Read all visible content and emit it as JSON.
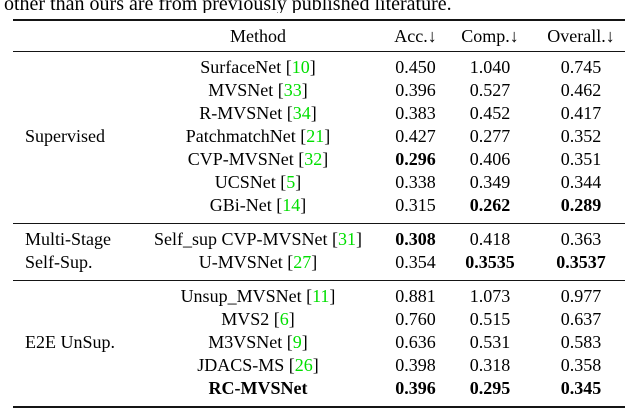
{
  "caption_fragment": "other than ours are from previously published literature.",
  "colors": {
    "citation_green": "#00DF00",
    "text": "#000000",
    "background": "#ffffff",
    "rule": "#151515"
  },
  "table": {
    "headers": {
      "group": "",
      "method": "Method",
      "acc": "Acc.↓",
      "comp": "Comp.↓",
      "overall": "Overall.↓"
    },
    "brackets": {
      "open": "[",
      "close": "]"
    },
    "groups": [
      {
        "rows": [
          {
            "label": "",
            "method": "SurfaceNet",
            "cite": "10",
            "acc": "0.450",
            "comp": "1.040",
            "overall": "0.745",
            "bold": []
          },
          {
            "label": "",
            "method": "MVSNet",
            "cite": "33",
            "acc": "0.396",
            "comp": "0.527",
            "overall": "0.462",
            "bold": []
          },
          {
            "label": "",
            "method": "R-MVSNet",
            "cite": "34",
            "acc": "0.383",
            "comp": "0.452",
            "overall": "0.417",
            "bold": []
          },
          {
            "label": "Supervised",
            "method": "PatchmatchNet",
            "cite": "21",
            "acc": "0.427",
            "comp": "0.277",
            "overall": "0.352",
            "bold": []
          },
          {
            "label": "",
            "method": "CVP-MVSNet",
            "cite": "32",
            "acc": "0.296",
            "comp": "0.406",
            "overall": "0.351",
            "bold": [
              "acc"
            ]
          },
          {
            "label": "",
            "method": "UCSNet",
            "cite": "5",
            "acc": "0.338",
            "comp": "0.349",
            "overall": "0.344",
            "bold": []
          },
          {
            "label": "",
            "method": "GBi-Net",
            "cite": "14",
            "acc": "0.315",
            "comp": "0.262",
            "overall": "0.289",
            "bold": [
              "comp",
              "overall"
            ]
          }
        ]
      },
      {
        "rows": [
          {
            "label": "Multi-Stage",
            "method": "Self_sup CVP-MVSNet",
            "cite": "31",
            "acc": "0.308",
            "comp": "0.418",
            "overall": "0.363",
            "bold": [
              "acc"
            ]
          },
          {
            "label": "Self-Sup.",
            "method": "U-MVSNet",
            "cite": "27",
            "acc": "0.354",
            "comp": "0.3535",
            "overall": "0.3537",
            "bold": [
              "comp",
              "overall"
            ]
          }
        ]
      },
      {
        "rows": [
          {
            "label": "",
            "method": "Unsup_MVSNet",
            "cite": "11",
            "acc": "0.881",
            "comp": "1.073",
            "overall": "0.977",
            "bold": []
          },
          {
            "label": "",
            "method": "MVS2",
            "cite": "6",
            "acc": "0.760",
            "comp": "0.515",
            "overall": "0.637",
            "bold": []
          },
          {
            "label": "E2E UnSup.",
            "method": "M3VSNet",
            "cite": "9",
            "acc": "0.636",
            "comp": "0.531",
            "overall": "0.583",
            "bold": []
          },
          {
            "label": "",
            "method": "JDACS-MS",
            "cite": "26",
            "acc": "0.398",
            "comp": "0.318",
            "overall": "0.358",
            "bold": []
          },
          {
            "label": "",
            "method": "RC-MVSNet",
            "cite": null,
            "acc": "0.396",
            "comp": "0.295",
            "overall": "0.345",
            "bold": [
              "method",
              "acc",
              "comp",
              "overall"
            ]
          }
        ]
      }
    ]
  }
}
